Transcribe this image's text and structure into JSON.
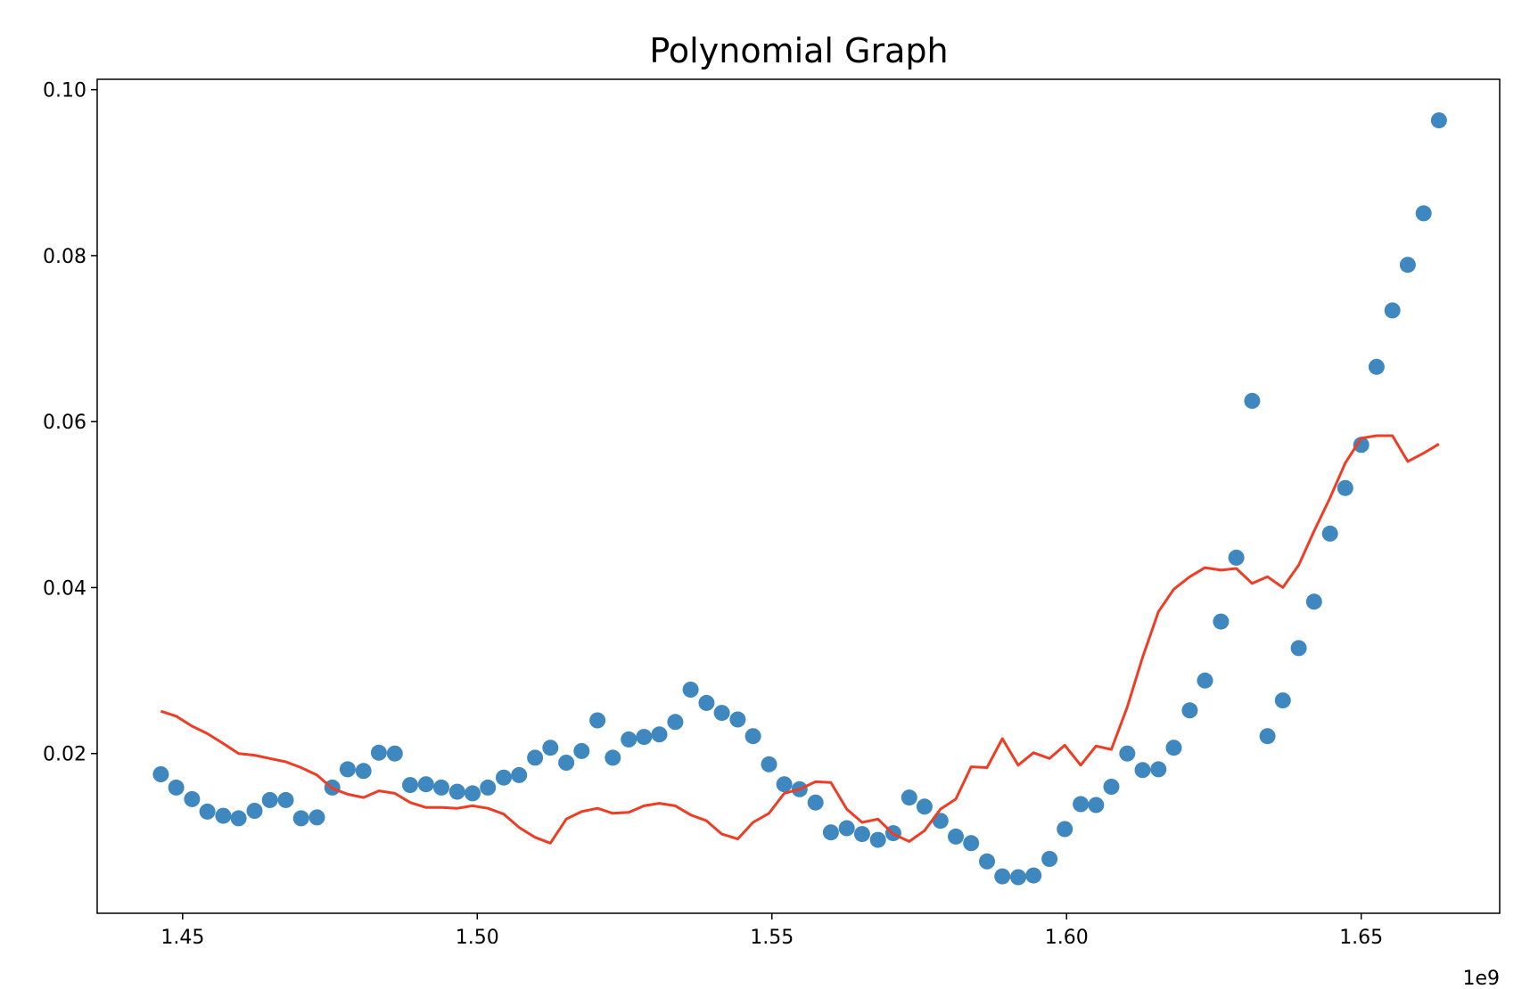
{
  "chart_data": {
    "type": "scatter",
    "title": "Polynomial Graph",
    "xlabel": "",
    "ylabel": "",
    "x_offset_text": "1e9",
    "xlim": [
      1.4355,
      1.6735
    ],
    "ylim": [
      0.00075,
      0.10125
    ],
    "xticks": [
      {
        "value": 1.45,
        "label": "1.45"
      },
      {
        "value": 1.5,
        "label": "1.50"
      },
      {
        "value": 1.55,
        "label": "1.55"
      },
      {
        "value": 1.6,
        "label": "1.60"
      },
      {
        "value": 1.65,
        "label": "1.65"
      }
    ],
    "yticks": [
      {
        "value": 0.02,
        "label": "0.02"
      },
      {
        "value": 0.04,
        "label": "0.04"
      },
      {
        "value": 0.06,
        "label": "0.06"
      },
      {
        "value": 0.08,
        "label": "0.08"
      },
      {
        "value": 0.1,
        "label": "0.10"
      }
    ],
    "grid": false,
    "legend": "none",
    "series": [
      {
        "kind": "scatter",
        "color": "#3f87bf",
        "x": [
          1.4463,
          1.4489,
          1.4516,
          1.4542,
          1.4569,
          1.4595,
          1.4622,
          1.4648,
          1.4675,
          1.4701,
          1.4728,
          1.4754,
          1.478,
          1.4807,
          1.4833,
          1.486,
          1.4886,
          1.4913,
          1.4939,
          1.4966,
          1.4992,
          1.5018,
          1.5045,
          1.5071,
          1.5098,
          1.5124,
          1.5151,
          1.5177,
          1.5204,
          1.523,
          1.5257,
          1.5283,
          1.5309,
          1.5336,
          1.5362,
          1.5389,
          1.5415,
          1.5442,
          1.5468,
          1.5495,
          1.5521,
          1.5547,
          1.5574,
          1.56,
          1.5627,
          1.5653,
          1.568,
          1.5706,
          1.5733,
          1.5759,
          1.5786,
          1.5812,
          1.5838,
          1.5865,
          1.5891,
          1.5918,
          1.5944,
          1.5971,
          1.5997,
          1.6024,
          1.605,
          1.6076,
          1.6103,
          1.6129,
          1.6156,
          1.6182,
          1.6209,
          1.6235,
          1.6262,
          1.6288,
          1.6315,
          1.6341,
          1.6367,
          1.6394,
          1.642,
          1.6447,
          1.6473,
          1.65,
          1.6526,
          1.6553,
          1.6579,
          1.6606,
          1.6632
        ],
        "y": [
          0.0175,
          0.0159,
          0.0145,
          0.013,
          0.0125,
          0.0122,
          0.0131,
          0.0144,
          0.0144,
          0.0122,
          0.0123,
          0.0159,
          0.0181,
          0.0179,
          0.0201,
          0.02,
          0.0162,
          0.0163,
          0.0159,
          0.0154,
          0.0152,
          0.0159,
          0.0171,
          0.0174,
          0.0195,
          0.0207,
          0.0189,
          0.0203,
          0.024,
          0.0195,
          0.0217,
          0.022,
          0.0223,
          0.0238,
          0.0277,
          0.0261,
          0.0249,
          0.0241,
          0.0221,
          0.0187,
          0.0163,
          0.0157,
          0.0141,
          0.0105,
          0.011,
          0.0103,
          0.0096,
          0.0104,
          0.0147,
          0.0136,
          0.0119,
          0.01,
          0.0092,
          0.007,
          0.0052,
          0.0051,
          0.0053,
          0.0073,
          0.0109,
          0.0139,
          0.0138,
          0.016,
          0.02,
          0.018,
          0.0181,
          0.0207,
          0.0252,
          0.0288,
          0.0359,
          0.0436,
          0.0625,
          0.0221,
          0.0264,
          0.0327,
          0.0383,
          0.0465,
          0.052,
          0.0572,
          0.0666,
          0.0734,
          0.0789,
          0.0851,
          0.0963
        ]
      },
      {
        "kind": "line",
        "color": "#ee3d24",
        "x": [
          1.4463,
          1.4489,
          1.4516,
          1.4542,
          1.4569,
          1.4595,
          1.4622,
          1.4648,
          1.4675,
          1.4701,
          1.4728,
          1.4754,
          1.478,
          1.4807,
          1.4833,
          1.486,
          1.4886,
          1.4913,
          1.4939,
          1.4966,
          1.4992,
          1.5018,
          1.5045,
          1.5071,
          1.5098,
          1.5124,
          1.5151,
          1.5177,
          1.5204,
          1.523,
          1.5257,
          1.5283,
          1.5309,
          1.5336,
          1.5362,
          1.5389,
          1.5415,
          1.5442,
          1.5468,
          1.5495,
          1.5521,
          1.5547,
          1.5574,
          1.56,
          1.5627,
          1.5653,
          1.568,
          1.5706,
          1.5733,
          1.5759,
          1.5786,
          1.5812,
          1.5838,
          1.5865,
          1.5891,
          1.5918,
          1.5944,
          1.5971,
          1.5997,
          1.6024,
          1.605,
          1.6076,
          1.6103,
          1.6129,
          1.6156,
          1.6182,
          1.6209,
          1.6235,
          1.6262,
          1.6288,
          1.6315,
          1.6341,
          1.6367,
          1.6394,
          1.642,
          1.6447,
          1.6473,
          1.65,
          1.6526,
          1.6553,
          1.6579,
          1.6606,
          1.6632
        ],
        "y": [
          0.0251,
          0.0245,
          0.0233,
          0.0224,
          0.0212,
          0.02,
          0.0198,
          0.0194,
          0.019,
          0.0183,
          0.0174,
          0.0158,
          0.0151,
          0.0147,
          0.0155,
          0.0152,
          0.0141,
          0.0135,
          0.0135,
          0.0134,
          0.0137,
          0.0134,
          0.0127,
          0.0111,
          0.0099,
          0.0092,
          0.0121,
          0.013,
          0.0134,
          0.0128,
          0.0129,
          0.0137,
          0.014,
          0.0137,
          0.0126,
          0.0119,
          0.0103,
          0.0097,
          0.0117,
          0.0128,
          0.0152,
          0.0157,
          0.0166,
          0.0165,
          0.0133,
          0.0117,
          0.0121,
          0.0103,
          0.0094,
          0.0107,
          0.0133,
          0.0145,
          0.0184,
          0.0183,
          0.0218,
          0.0186,
          0.0201,
          0.0194,
          0.021,
          0.0186,
          0.0209,
          0.0205,
          0.0256,
          0.0316,
          0.0371,
          0.0398,
          0.0413,
          0.0424,
          0.0421,
          0.0423,
          0.0405,
          0.0413,
          0.04,
          0.0427,
          0.0468,
          0.0508,
          0.055,
          0.058,
          0.0583,
          0.0583,
          0.0552,
          0.0562,
          0.0573
        ]
      }
    ]
  }
}
